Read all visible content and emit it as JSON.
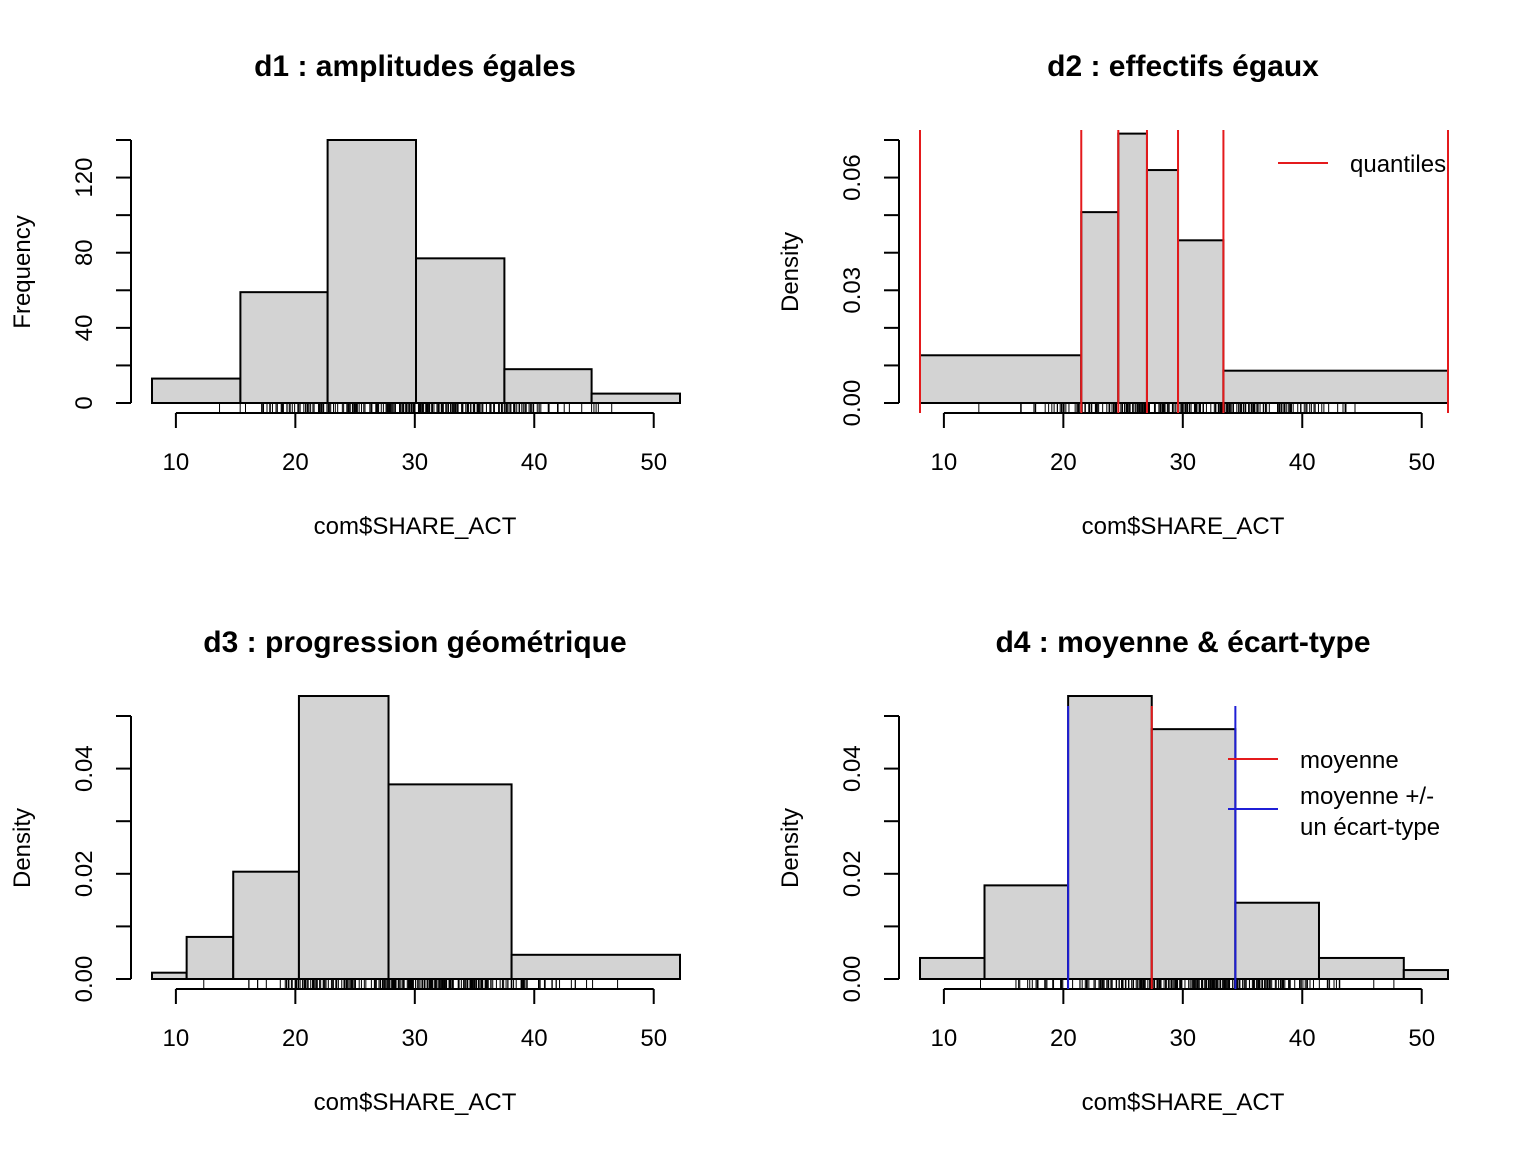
{
  "chart_data": [
    {
      "id": "d1",
      "type": "bar",
      "title": "d1 : amplitudes égales",
      "xlabel": "com$SHARE_ACT",
      "ylabel": "Frequency",
      "xlim": [
        8,
        52.2
      ],
      "ylim": [
        0,
        140
      ],
      "xticks": [
        10,
        20,
        30,
        40,
        50
      ],
      "yticks": [
        0,
        40,
        80,
        120
      ],
      "yminor_step": 20,
      "bins": [
        {
          "x0": 8.0,
          "x1": 15.4,
          "value": 13
        },
        {
          "x0": 15.4,
          "x1": 22.7,
          "value": 59
        },
        {
          "x0": 22.7,
          "x1": 30.1,
          "value": 140
        },
        {
          "x0": 30.1,
          "x1": 37.5,
          "value": 77
        },
        {
          "x0": 37.5,
          "x1": 44.8,
          "value": 18
        },
        {
          "x0": 44.8,
          "x1": 52.2,
          "value": 5
        }
      ],
      "vlines": [],
      "legend": []
    },
    {
      "id": "d2",
      "type": "bar",
      "title": "d2 : effectifs égaux",
      "xlabel": "com$SHARE_ACT",
      "ylabel": "Density",
      "xlim": [
        8,
        52.2
      ],
      "ylim": [
        0,
        0.07
      ],
      "xticks": [
        10,
        20,
        30,
        40,
        50
      ],
      "yticks": [
        0.0,
        0.03,
        0.06
      ],
      "ytick_labels": [
        "0.00",
        "0.03",
        "0.06"
      ],
      "yminor_step": 0.01,
      "bins": [
        {
          "x0": 8.0,
          "x1": 21.5,
          "value": 0.0127
        },
        {
          "x0": 21.5,
          "x1": 24.6,
          "value": 0.0508
        },
        {
          "x0": 24.6,
          "x1": 27.0,
          "value": 0.0717
        },
        {
          "x0": 27.0,
          "x1": 29.6,
          "value": 0.062
        },
        {
          "x0": 29.6,
          "x1": 33.4,
          "value": 0.0433
        },
        {
          "x0": 33.4,
          "x1": 52.2,
          "value": 0.0086
        }
      ],
      "vlines": [
        {
          "x": 8.0,
          "color": "#e41a1c"
        },
        {
          "x": 21.5,
          "color": "#e41a1c"
        },
        {
          "x": 24.6,
          "color": "#e41a1c"
        },
        {
          "x": 27.0,
          "color": "#e41a1c"
        },
        {
          "x": 29.6,
          "color": "#e41a1c"
        },
        {
          "x": 33.4,
          "color": "#e41a1c"
        },
        {
          "x": 52.2,
          "color": "#e41a1c"
        }
      ],
      "legend": [
        {
          "label": "quantiles",
          "color": "#e41a1c"
        }
      ]
    },
    {
      "id": "d3",
      "type": "bar",
      "title": "d3 : progression géométrique",
      "xlabel": "com$SHARE_ACT",
      "ylabel": "Density",
      "xlim": [
        8,
        52.2
      ],
      "ylim": [
        0,
        0.05
      ],
      "xticks": [
        10,
        20,
        30,
        40,
        50
      ],
      "yticks": [
        0.0,
        0.02,
        0.04
      ],
      "ytick_labels": [
        "0.00",
        "0.02",
        "0.04"
      ],
      "yminor_step": 0.01,
      "bins": [
        {
          "x0": 8.0,
          "x1": 10.9,
          "value": 0.0012
        },
        {
          "x0": 10.9,
          "x1": 14.8,
          "value": 0.008
        },
        {
          "x0": 14.8,
          "x1": 20.3,
          "value": 0.0204
        },
        {
          "x0": 20.3,
          "x1": 27.8,
          "value": 0.0538
        },
        {
          "x0": 27.8,
          "x1": 38.1,
          "value": 0.037
        },
        {
          "x0": 38.1,
          "x1": 52.2,
          "value": 0.0046
        }
      ],
      "vlines": [],
      "legend": []
    },
    {
      "id": "d4",
      "type": "bar",
      "title": "d4 : moyenne & écart-type",
      "xlabel": "com$SHARE_ACT",
      "ylabel": "Density",
      "xlim": [
        8,
        52.2
      ],
      "ylim": [
        0,
        0.05
      ],
      "xticks": [
        10,
        20,
        30,
        40,
        50
      ],
      "yticks": [
        0.0,
        0.02,
        0.04
      ],
      "ytick_labels": [
        "0.00",
        "0.02",
        "0.04"
      ],
      "yminor_step": 0.01,
      "bins": [
        {
          "x0": 8.0,
          "x1": 13.4,
          "value": 0.004
        },
        {
          "x0": 13.4,
          "x1": 20.4,
          "value": 0.0178
        },
        {
          "x0": 20.4,
          "x1": 27.4,
          "value": 0.0538
        },
        {
          "x0": 27.4,
          "x1": 34.4,
          "value": 0.0475
        },
        {
          "x0": 34.4,
          "x1": 41.4,
          "value": 0.0145
        },
        {
          "x0": 41.4,
          "x1": 48.5,
          "value": 0.004
        },
        {
          "x0": 48.5,
          "x1": 52.2,
          "value": 0.0017
        }
      ],
      "vlines": [
        {
          "x": 27.4,
          "color": "#e41a1c"
        },
        {
          "x": 20.4,
          "color": "#1f1fd6"
        },
        {
          "x": 34.4,
          "color": "#1f1fd6"
        }
      ],
      "legend": [
        {
          "label": "moyenne",
          "color": "#e41a1c"
        },
        {
          "label": "moyenne +/-",
          "label2": "un écart-type",
          "color": "#1f1fd6"
        }
      ]
    }
  ],
  "colors": {
    "bar_fill": "#d3d3d3",
    "bar_stroke": "#000000"
  }
}
